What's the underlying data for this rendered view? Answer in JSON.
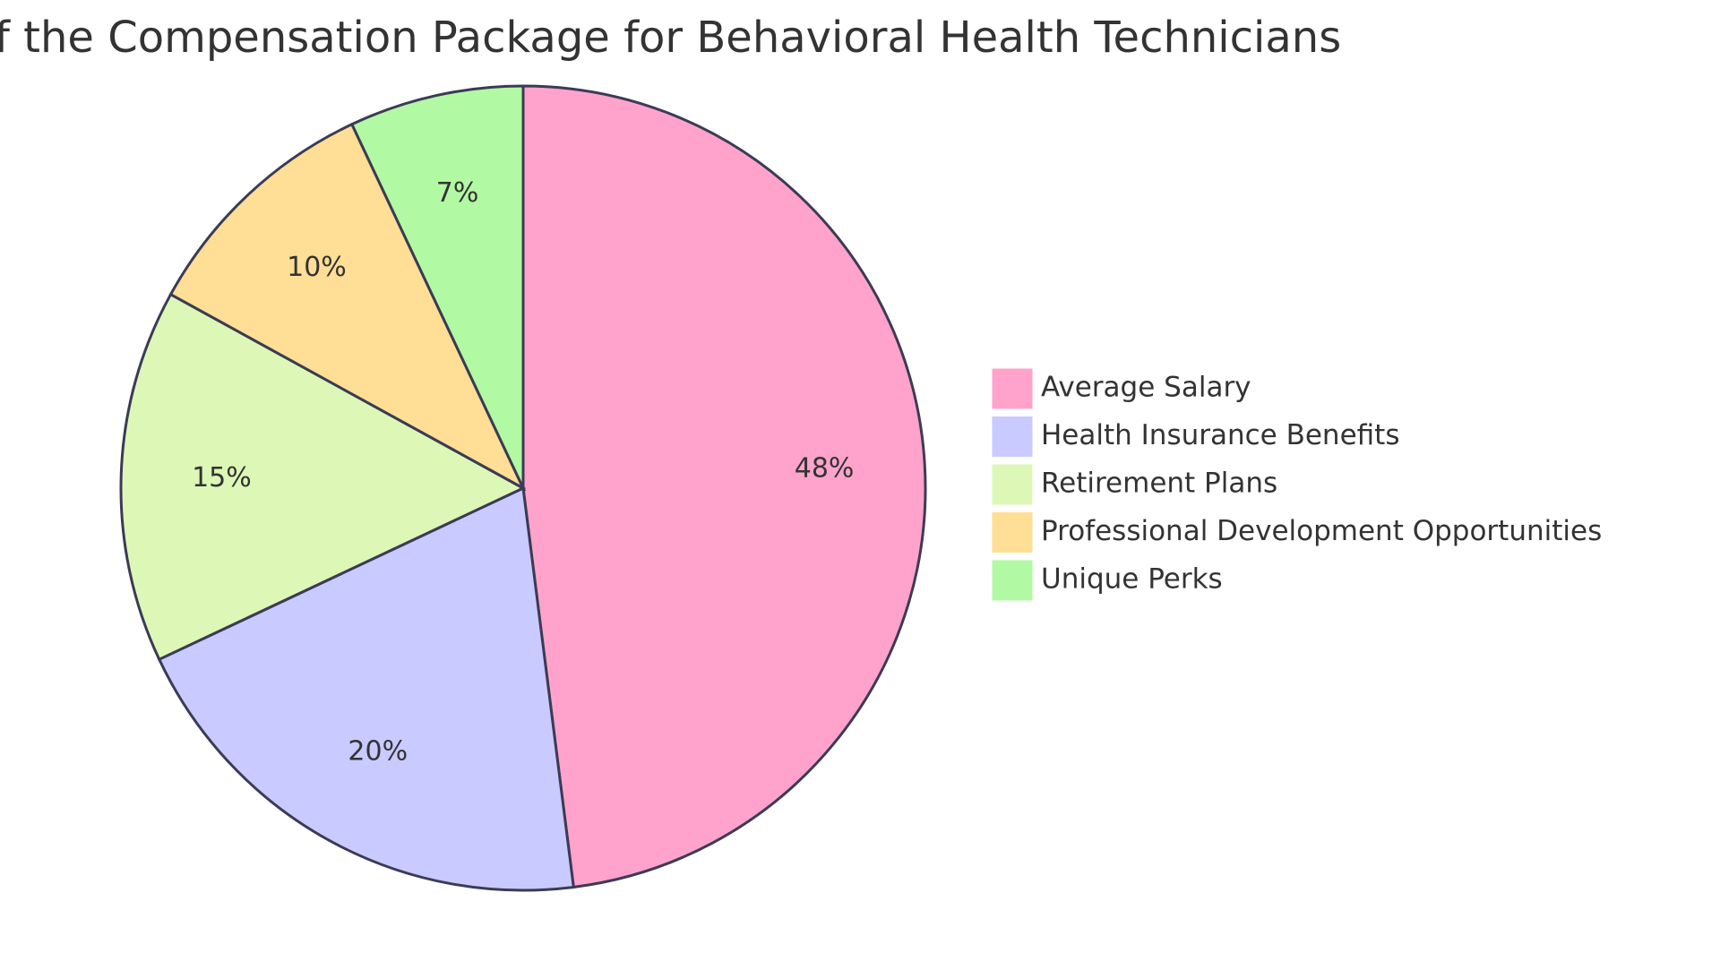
{
  "chart_data": {
    "type": "pie",
    "title": "f the Compensation Package for Behavioral Health Technicians",
    "slices": [
      {
        "label": "Average Salary",
        "value": 48,
        "display": "48%",
        "color": "#FFA3CD"
      },
      {
        "label": "Health Insurance Benefits",
        "value": 20,
        "display": "20%",
        "color": "#C9CAFF"
      },
      {
        "label": "Retirement Plans",
        "value": 15,
        "display": "15%",
        "color": "#DDF8B6"
      },
      {
        "label": "Professional Development Opportunities",
        "value": 10,
        "display": "10%",
        "color": "#FFDE95"
      },
      {
        "label": "Unique Perks",
        "value": 7,
        "display": "7%",
        "color": "#B2F9A3"
      }
    ],
    "legend_position": "right",
    "stroke_color": "#3b3b55"
  }
}
